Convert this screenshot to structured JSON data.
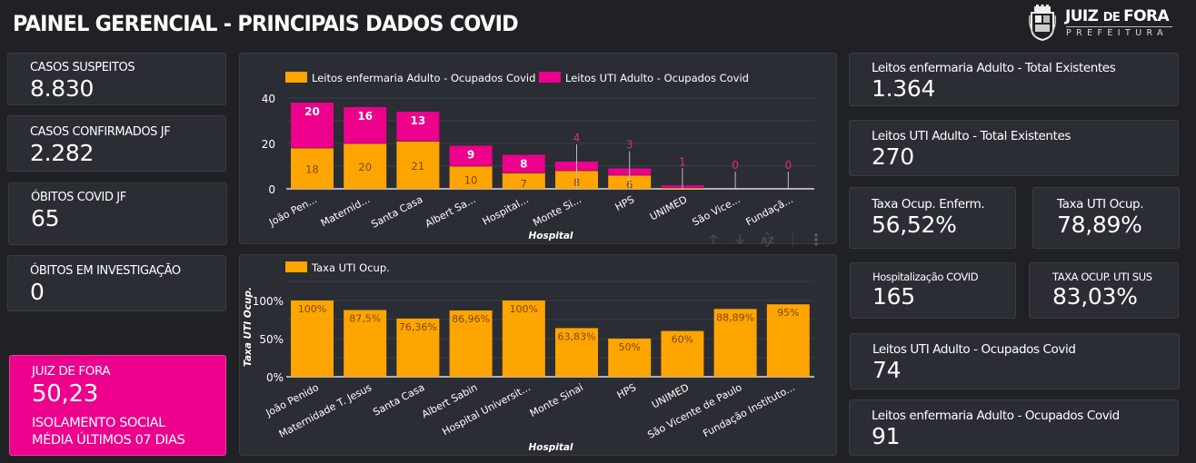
{
  "header": {
    "title": "PAINEL GERENCIAL - PRINCIPAIS DADOS COVID",
    "logo": {
      "name_part1": "JUIZ ",
      "name_part2": "DE ",
      "name_part3": "FORA",
      "subtitle": "PREFEITURA"
    }
  },
  "colors": {
    "background": "#202124",
    "card": "#2b2d35",
    "orange": "#ffa500",
    "pink": "#ec008c"
  },
  "left_cards": [
    {
      "label": "CASOS SUSPEITOS",
      "value": "8.830"
    },
    {
      "label": "CASOS CONFIRMADOS JF",
      "value": "2.282"
    },
    {
      "label": "ÓBITOS COVID JF",
      "value": "65"
    },
    {
      "label": "ÓBITOS EM INVESTIGAÇÃO",
      "value": "0"
    }
  ],
  "isolation_card": {
    "label": "JUIZ DE FORA",
    "value": "50,23",
    "line1": "ISOLAMENTO SOCIAL",
    "line2": "MÉDIA ÚLTIMOS 07 DIAS"
  },
  "right_cards": {
    "enf_total": {
      "label": "Leitos enfermaria Adulto - Total Existentes",
      "value": "1.364"
    },
    "uti_total": {
      "label": "Leitos UTI Adulto - Total Existentes",
      "value": "270"
    },
    "taxa_enf": {
      "label": "Taxa Ocup. Enferm.",
      "value": "56,52%"
    },
    "taxa_uti": {
      "label": "Taxa UTI Ocup.",
      "value": "78,89%"
    },
    "hospitalizacao": {
      "label": "Hospitalização COVID",
      "value": "165"
    },
    "taxa_uti_sus": {
      "label": "TAXA OCUP. UTI SUS",
      "value": "83,03%"
    },
    "uti_ocupados": {
      "label": "Leitos UTI Adulto - Ocupados Covid",
      "value": "74"
    },
    "enf_ocupados": {
      "label": "Leitos enfermaria Adulto - Ocupados Covid",
      "value": "91"
    }
  },
  "chart_toolbar": {
    "sort_asc": "sort-ascending-icon",
    "sort_desc": "sort-descending-icon",
    "sort_az": "sort-az-icon",
    "more": "more-options-icon"
  },
  "chart_data": [
    {
      "type": "bar",
      "stacked": true,
      "title": "",
      "xlabel": "Hospital",
      "ylabel": "",
      "ylim": [
        0,
        40
      ],
      "yticks": [
        "0",
        "20",
        "40"
      ],
      "grid": true,
      "legend_position": "top",
      "categories": [
        "João Pen...",
        "Maternid...",
        "Santa Casa",
        "Albert Sa...",
        "Hospital...",
        "Monte Si...",
        "HPS",
        "UNIMED",
        "São Vice...",
        "Fundaçã..."
      ],
      "series": [
        {
          "name": "Leitos enfermaria Adulto - Ocupados Covid",
          "color": "#ffa500",
          "values": [
            18,
            20,
            21,
            10,
            7,
            8,
            6,
            0.5,
            0,
            0
          ]
        },
        {
          "name": "Leitos UTI Adulto - Ocupados Covid",
          "color": "#ec008c",
          "values": [
            20,
            16,
            13,
            9,
            8,
            4,
            3,
            1,
            0,
            0
          ]
        }
      ],
      "data_labels": {
        "orange": [
          "18",
          "20",
          "21",
          "10",
          "7",
          "8",
          "6",
          "",
          "",
          ""
        ],
        "pink": [
          "20",
          "16",
          "13",
          "9",
          "8",
          "4",
          "3",
          "1",
          "0",
          "0"
        ]
      }
    },
    {
      "type": "bar",
      "title": "",
      "xlabel": "Hospital",
      "ylabel": "Taxa UTI Ocup.",
      "ylim": [
        0,
        125
      ],
      "yticks": [
        "0%",
        "50%",
        "100%"
      ],
      "grid": true,
      "legend_position": "top",
      "categories": [
        "João Penido",
        "Maternidade T. Jesus",
        "Santa Casa",
        "Albert Sabin",
        "Hospital Universit...",
        "Monte Sinai",
        "HPS",
        "UNIMED",
        "São Vicente de Paulo",
        "Fundação Instituto..."
      ],
      "series": [
        {
          "name": "Taxa UTI Ocup.",
          "color": "#ffa500",
          "values": [
            100,
            87.5,
            76.36,
            86.96,
            100,
            63.83,
            50,
            60,
            88.89,
            95
          ]
        }
      ],
      "data_labels": [
        "100%",
        "87,5%",
        "76,36%",
        "86,96%",
        "100%",
        "63,83%",
        "50%",
        "60%",
        "88,89%",
        "95%"
      ]
    }
  ]
}
